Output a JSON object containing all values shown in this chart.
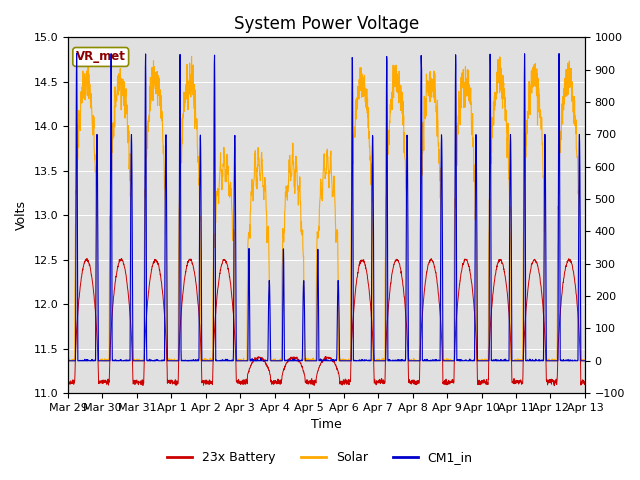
{
  "title": "System Power Voltage",
  "ylabel_left": "Volts",
  "xlabel": "Time",
  "ylim_left": [
    11.0,
    15.0
  ],
  "ylim_right": [
    -100,
    1000
  ],
  "yticks_left": [
    11.0,
    11.5,
    12.0,
    12.5,
    13.0,
    13.5,
    14.0,
    14.5,
    15.0
  ],
  "yticks_right": [
    -100,
    0,
    100,
    200,
    300,
    400,
    500,
    600,
    700,
    800,
    900,
    1000
  ],
  "xtick_labels": [
    "Mar 29",
    "Mar 30",
    "Mar 31",
    "Apr 1",
    "Apr 2",
    "Apr 3",
    "Apr 4",
    "Apr 5",
    "Apr 6",
    "Apr 7",
    "Apr 8",
    "Apr 9",
    "Apr 10",
    "Apr 11",
    "Apr 12",
    "Apr 13"
  ],
  "color_battery": "#cc0000",
  "color_solar": "#ffaa00",
  "color_cm1": "#0000cc",
  "legend_labels": [
    "23x Battery",
    "Solar",
    "CM1_in"
  ],
  "vr_met_label": "VR_met",
  "background_color": "#e0e0e0",
  "title_fontsize": 12,
  "label_fontsize": 9,
  "tick_fontsize": 8
}
